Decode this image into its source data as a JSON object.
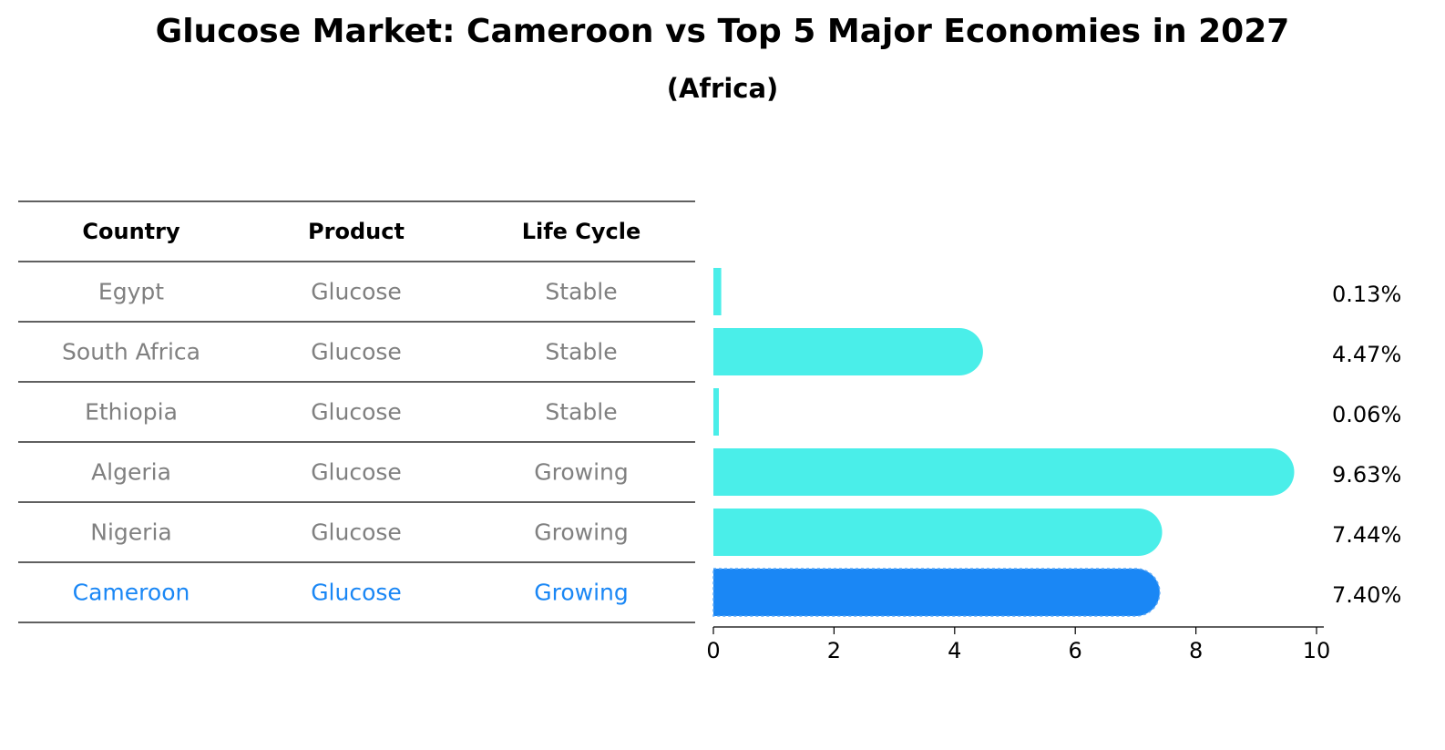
{
  "chart_data": {
    "type": "bar",
    "orientation": "horizontal",
    "title": "Glucose Market: Cameroon vs Top 5 Major Economies in 2027",
    "subtitle": "(Africa)",
    "table": {
      "headers": [
        "Country",
        "Product",
        "Life Cycle"
      ],
      "rows": [
        [
          "Egypt",
          "Glucose",
          "Stable"
        ],
        [
          "South Africa",
          "Glucose",
          "Stable"
        ],
        [
          "Ethiopia",
          "Glucose",
          "Stable"
        ],
        [
          "Algeria",
          "Glucose",
          "Growing"
        ],
        [
          "Nigeria",
          "Glucose",
          "Growing"
        ],
        [
          "Cameroon",
          "Glucose",
          "Growing"
        ]
      ]
    },
    "categories": [
      "Egypt",
      "South Africa",
      "Ethiopia",
      "Algeria",
      "Nigeria",
      "Cameroon"
    ],
    "values": [
      0.13,
      4.47,
      0.06,
      9.63,
      7.44,
      7.4
    ],
    "value_labels": [
      "0.13%",
      "4.47%",
      "0.06%",
      "9.63%",
      "7.44%",
      "7.40%"
    ],
    "highlight": "Cameroon",
    "xlim": [
      0,
      10
    ],
    "xticks": [
      0,
      2,
      4,
      6,
      8,
      10
    ],
    "xlabel": "",
    "ylabel": "",
    "grid": false,
    "colors": {
      "bar": "#4aeee9",
      "highlight": "#1a87f5",
      "muted_text": "#808080",
      "highlight_text": "#1a87f5"
    }
  }
}
